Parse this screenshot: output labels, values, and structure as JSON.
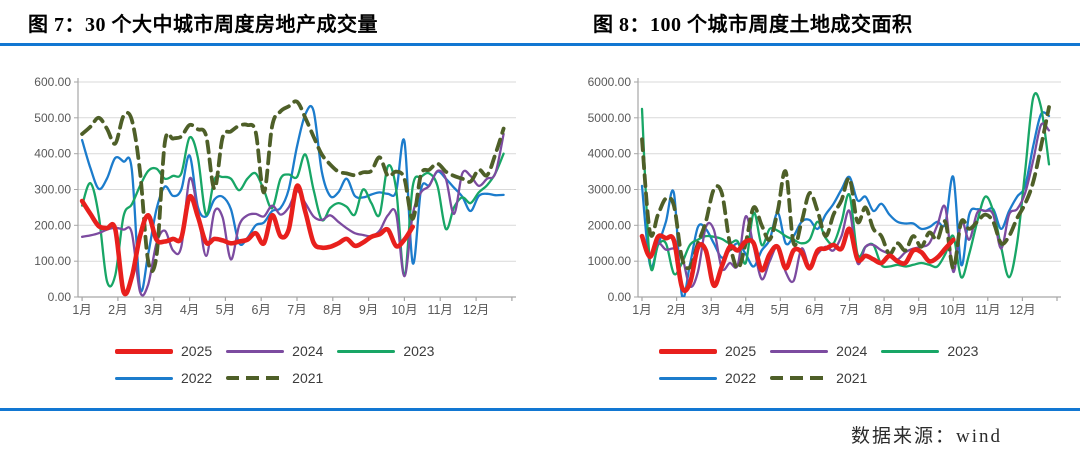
{
  "colors": {
    "accent_rule": "#1277d2",
    "grid": "#d9d9d9",
    "axis": "#a6a6a6",
    "tick_label": "#595959",
    "legend_text": "#3c3c3c"
  },
  "footer": {
    "source_label": "数据来源：wind"
  },
  "figures": [
    {
      "title": "图 7：30 个大中城市周度房地产成交量",
      "legend_rows": [
        [
          "2025",
          "2024",
          "2023"
        ],
        [
          "2022",
          "2021"
        ]
      ],
      "chart_data": {
        "type": "line",
        "title": "30个大中城市周度房地产成交量",
        "xlabel": "",
        "ylabel": "",
        "x_unit": "week-of-year",
        "x_tick_labels": [
          "1月",
          "2月",
          "3月",
          "4月",
          "5月",
          "6月",
          "7月",
          "8月",
          "9月",
          "10月",
          "11月",
          "12月"
        ],
        "ylim": [
          0,
          600
        ],
        "y_tick_labels": [
          "0.00",
          "100.00",
          "200.00",
          "300.00",
          "400.00",
          "500.00",
          "600.00"
        ],
        "grid": true,
        "legend_position": "bottom",
        "series": [
          {
            "name": "2025",
            "color": "#e8201d",
            "width": 4.6,
            "dash": false,
            "values": [
              268,
              232,
              198,
              192,
              190,
              15,
              55,
              170,
              228,
              160,
              155,
              162,
              165,
              280,
              225,
              152,
              162,
              158,
              150,
              155,
              160,
              178,
              150,
              228,
              170,
              188,
              310,
              238,
              152,
              138,
              140,
              150,
              162,
              143,
              152,
              168,
              175,
              188,
              142,
              160,
              196
            ]
          },
          {
            "name": "2024",
            "color": "#7c4ba0",
            "width": 2.3,
            "dash": false,
            "values": [
              168,
              172,
              178,
              188,
              193,
              188,
              180,
              15,
              35,
              150,
              185,
              130,
              140,
              330,
              240,
              115,
              238,
              222,
              105,
              200,
              228,
              232,
              225,
              255,
              230,
              250,
              295,
              262,
              225,
              215,
              228,
              210,
              192,
              178,
              173,
              170,
              185,
              228,
              232,
              58,
              230,
              292,
              310,
              352,
              330,
              232,
              345,
              338,
              310,
              330,
              345,
              455
            ]
          },
          {
            "name": "2023",
            "color": "#18a666",
            "width": 2.3,
            "dash": false,
            "values": [
              255,
              318,
              228,
              45,
              60,
              225,
              258,
              310,
              352,
              358,
              330,
              338,
              345,
              445,
              390,
              230,
              328,
              335,
              330,
              298,
              330,
              345,
              298,
              248,
              330,
              342,
              335,
              398,
              300,
              215,
              248,
              262,
              252,
              230,
              300,
              262,
              230,
              365,
              300,
              60,
              308,
              335,
              345,
              310,
              190,
              250,
              278,
              262,
              292,
              312,
              345,
              400
            ]
          },
          {
            "name": "2022",
            "color": "#1c7ccc",
            "width": 2.3,
            "dash": false,
            "values": [
              438,
              360,
              302,
              330,
              388,
              378,
              358,
              25,
              120,
              245,
              308,
              282,
              300,
              395,
              252,
              225,
              272,
              280,
              245,
              150,
              165,
              200,
              208,
              240,
              248,
              300,
              420,
              510,
              520,
              350,
              282,
              292,
              330,
              282,
              278,
              286,
              292,
              288,
              295,
              435,
              95,
              300,
              312,
              350,
              330,
              305,
              280,
              240,
              282,
              288,
              284,
              285
            ]
          },
          {
            "name": "2021",
            "color": "#4e5f28",
            "width": 3.8,
            "dash": true,
            "values": [
              455,
              475,
              500,
              470,
              428,
              505,
              495,
              350,
              100,
              115,
              430,
              442,
              448,
              480,
              468,
              450,
              302,
              445,
              462,
              478,
              480,
              460,
              292,
              478,
              518,
              532,
              545,
              500,
              448,
              398,
              370,
              350,
              345,
              340,
              348,
              352,
              390,
              338,
              350,
              330,
              218,
              342,
              355,
              372,
              350,
              338,
              330,
              322,
              355,
              340,
              398,
              470
            ]
          }
        ]
      }
    },
    {
      "title": "图 8：100 个城市周度土地成交面积",
      "legend_rows": [
        [
          "2025",
          "2024",
          "2023"
        ],
        [
          "2022",
          "2021"
        ]
      ],
      "chart_data": {
        "type": "line",
        "title": "100个城市周度土地成交面积",
        "xlabel": "",
        "ylabel": "",
        "x_unit": "week-of-year",
        "x_tick_labels": [
          "1月",
          "2月",
          "3月",
          "4月",
          "5月",
          "6月",
          "7月",
          "8月",
          "9月",
          "10月",
          "11月",
          "12月"
        ],
        "ylim": [
          0,
          6000
        ],
        "y_tick_labels": [
          "0.00",
          "1000.00",
          "2000.00",
          "3000.00",
          "4000.00",
          "5000.00",
          "6000.00"
        ],
        "grid": true,
        "legend_position": "bottom",
        "series": [
          {
            "name": "2025",
            "color": "#e8201d",
            "width": 4.6,
            "dash": false,
            "values": [
              1700,
              1120,
              1680,
              1640,
              1580,
              280,
              380,
              1380,
              1300,
              320,
              850,
              1400,
              1300,
              1550,
              1500,
              750,
              1200,
              1400,
              800,
              1300,
              1250,
              800,
              1300,
              1350,
              1450,
              1350,
              1900,
              1050,
              1150,
              1050,
              950,
              1150,
              1000,
              950,
              1300,
              1250,
              1000,
              1100,
              1350,
              1600
            ]
          },
          {
            "name": "2024",
            "color": "#7c4ba0",
            "width": 2.3,
            "dash": false,
            "values": [
              1680,
              1100,
              1500,
              1320,
              1350,
              1150,
              300,
              700,
              1950,
              1880,
              800,
              950,
              900,
              2250,
              1400,
              500,
              1000,
              1400,
              700,
              450,
              1350,
              850,
              1200,
              1400,
              1300,
              1700,
              2400,
              950,
              1400,
              1450,
              1300,
              1200,
              1050,
              1250,
              1350,
              1400,
              1500,
              2000,
              2500,
              700,
              2100,
              1600,
              2350,
              2400,
              2300,
              1350,
              2300,
              2450,
              2900,
              3800,
              4800,
              4650
            ]
          },
          {
            "name": "2023",
            "color": "#18a666",
            "width": 2.3,
            "dash": false,
            "values": [
              5250,
              950,
              1450,
              1500,
              650,
              950,
              1450,
              1600,
              1700,
              1680,
              1620,
              1500,
              1550,
              950,
              2350,
              1450,
              1900,
              1850,
              1700,
              1600,
              1500,
              1600,
              2100,
              1650,
              1500,
              2100,
              2850,
              1200,
              1400,
              1450,
              900,
              850,
              900,
              850,
              900,
              950,
              900,
              850,
              1200,
              1700,
              550,
              1200,
              2100,
              2800,
              2400,
              1400,
              550,
              1500,
              3500,
              5550,
              5300,
              3700
            ]
          },
          {
            "name": "2022",
            "color": "#1c7ccc",
            "width": 2.3,
            "dash": false,
            "values": [
              3100,
              900,
              1450,
              2100,
              2900,
              50,
              900,
              1950,
              1900,
              1500,
              1100,
              1300,
              1500,
              1200,
              850,
              1300,
              1600,
              2350,
              1500,
              1700,
              2100,
              2150,
              1900,
              2300,
              2600,
              3000,
              3350,
              2700,
              2800,
              2400,
              2600,
              2300,
              2100,
              2050,
              2050,
              1900,
              1950,
              2100,
              2050,
              3350,
              900,
              2300,
              2450,
              2400,
              2450,
              1900,
              2400,
              2800,
              3100,
              4200,
              5100,
              5050
            ]
          },
          {
            "name": "2021",
            "color": "#4e5f28",
            "width": 3.8,
            "dash": true,
            "values": [
              4400,
              1800,
              2300,
              2750,
              2550,
              1100,
              830,
              1500,
              2100,
              3000,
              2900,
              1500,
              800,
              1500,
              2500,
              2000,
              1600,
              2400,
              3500,
              1500,
              2100,
              2900,
              2400,
              1700,
              2300,
              2700,
              3300,
              2100,
              2500,
              1900,
              1700,
              1200,
              1500,
              1300,
              1700,
              1400,
              1800,
              1600,
              2100,
              800,
              2100,
              1900,
              2100,
              2300,
              2100,
              1500,
              1700,
              2200,
              2600,
              3200,
              4200,
              5300
            ]
          }
        ]
      }
    }
  ]
}
